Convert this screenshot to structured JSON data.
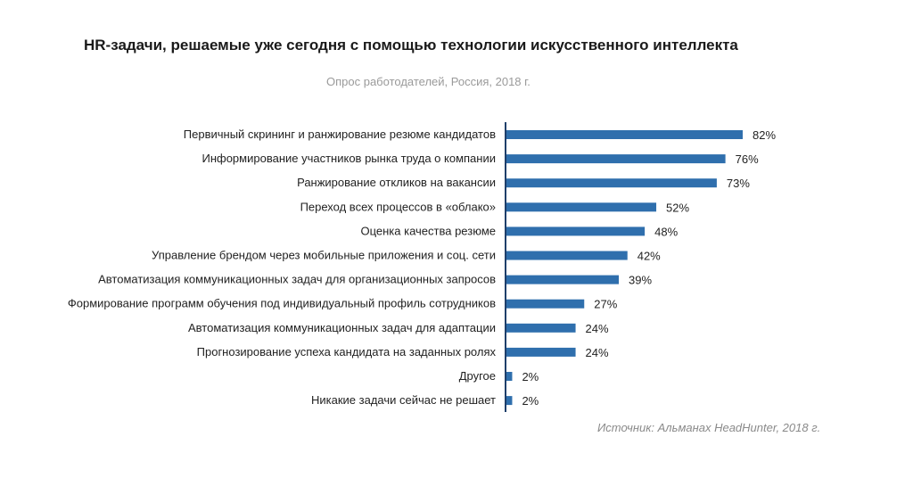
{
  "chart_data": {
    "type": "bar",
    "orientation": "horizontal",
    "title": "HR-задачи, решаемые уже сегодня с помощью технологии искусственного интеллекта",
    "subtitle": "Опрос работодателей, Россия, 2018 г.",
    "source": "Источник: Альманах HeadHunter, 2018 г.",
    "unit": "%",
    "xlim": [
      0,
      100
    ],
    "bar_color": "#2f6fad",
    "axis_color": "#1f3f6a",
    "categories": [
      "Первичный скрининг и ранжирование резюме кандидатов",
      "Информирование участников рынка труда о компании",
      "Ранжирование откликов на вакансии",
      "Переход всех процессов в «облако»",
      "Оценка качества резюме",
      "Управление брендом через мобильные приложения и соц. сети",
      "Автоматизация коммуникационных задач для организационных запросов",
      "Формирование программ обучения под индивидуальный профиль сотрудников",
      "Автоматизация коммуникационных задач для адаптации",
      "Прогнозирование успеха кандидата на заданных ролях",
      "Другое",
      "Никакие задачи сейчас не решает"
    ],
    "values": [
      82,
      76,
      73,
      52,
      48,
      42,
      39,
      27,
      24,
      24,
      2,
      2
    ],
    "value_labels": [
      "82%",
      "76%",
      "73%",
      "52%",
      "48%",
      "42%",
      "39%",
      "27%",
      "24%",
      "24%",
      "2%",
      "2%"
    ]
  }
}
